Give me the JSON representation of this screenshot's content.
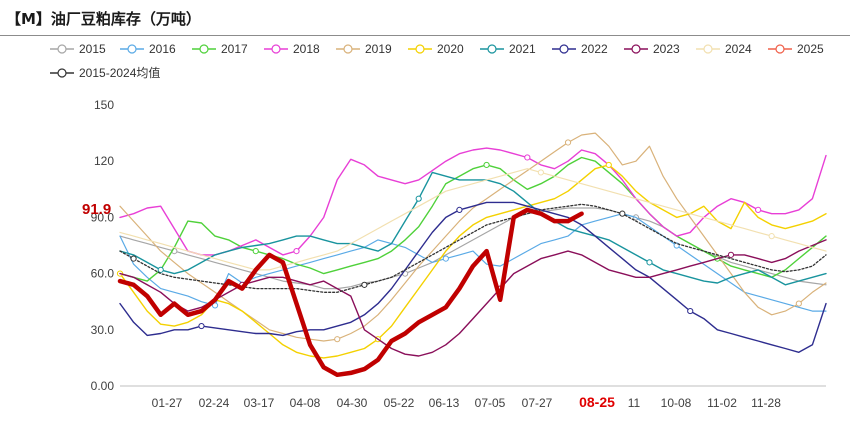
{
  "chart_data": {
    "type": "line",
    "title": "【M】油厂豆粕库存（万吨）",
    "xlabel": "",
    "ylabel": "",
    "ylim": [
      0,
      150
    ],
    "y_ticks": [
      "0.00",
      "30.0",
      "60.0",
      "90.0",
      "120",
      "150"
    ],
    "x_ticks": [
      "01-27",
      "02-24",
      "03-17",
      "04-08",
      "04-30",
      "05-22",
      "06-13",
      "07-05",
      "07-27",
      "08-25",
      "11",
      "10-08",
      "11-02",
      "11-28"
    ],
    "highlight_tick": "08-25",
    "current_value_label": "91.9",
    "grid": false,
    "legend_position": "top",
    "n_weeks": 53,
    "series": [
      {
        "name": "2015",
        "color": "#a6a6a6",
        "marker": "circle",
        "width": 1.2,
        "dash": "",
        "values": [
          80,
          78,
          76,
          74,
          72,
          70,
          68,
          66,
          64,
          62,
          60,
          58,
          56,
          55,
          54,
          52,
          52,
          53,
          55,
          56,
          58,
          60,
          63,
          66,
          70,
          74,
          78,
          82,
          86,
          90,
          92,
          93,
          94,
          95,
          95,
          95,
          94,
          92,
          90,
          88,
          85,
          80,
          76,
          72,
          69,
          66,
          64,
          62,
          60,
          58,
          56,
          55,
          54
        ]
      },
      {
        "name": "2016",
        "color": "#5aaae6",
        "marker": "circle",
        "width": 1.2,
        "dash": "",
        "values": [
          80,
          65,
          58,
          52,
          50,
          48,
          45,
          43,
          60,
          55,
          58,
          60,
          62,
          64,
          66,
          68,
          70,
          72,
          74,
          78,
          76,
          74,
          70,
          66,
          68,
          70,
          72,
          65,
          64,
          68,
          72,
          76,
          78,
          80,
          86,
          88,
          90,
          92,
          90,
          85,
          80,
          75,
          70,
          65,
          60,
          55,
          50,
          48,
          46,
          44,
          42,
          40,
          40
        ]
      },
      {
        "name": "2017",
        "color": "#4fd13a",
        "marker": "circle",
        "width": 1.4,
        "dash": "",
        "values": [
          60,
          58,
          56,
          62,
          74,
          88,
          87,
          80,
          78,
          74,
          72,
          70,
          68,
          65,
          63,
          60,
          62,
          64,
          66,
          68,
          72,
          78,
          85,
          96,
          108,
          112,
          116,
          118,
          116,
          110,
          105,
          108,
          112,
          118,
          122,
          120,
          114,
          108,
          100,
          92,
          85,
          80,
          76,
          72,
          68,
          64,
          62,
          60,
          58,
          62,
          68,
          74,
          80
        ]
      },
      {
        "name": "2018",
        "color": "#e83fd6",
        "marker": "circle",
        "width": 1.4,
        "dash": "",
        "values": [
          90,
          92,
          95,
          96,
          84,
          72,
          70,
          70,
          72,
          75,
          78,
          74,
          70,
          72,
          80,
          90,
          110,
          121,
          118,
          112,
          110,
          108,
          110,
          115,
          120,
          124,
          126,
          127,
          126,
          124,
          122,
          118,
          116,
          120,
          126,
          124,
          118,
          110,
          100,
          92,
          85,
          80,
          82,
          90,
          96,
          100,
          98,
          94,
          92,
          92,
          94,
          100,
          123
        ]
      },
      {
        "name": "2019",
        "color": "#d9b27a",
        "marker": "circle",
        "width": 1.2,
        "dash": "",
        "values": [
          96,
          88,
          80,
          72,
          66,
          60,
          55,
          50,
          45,
          40,
          35,
          30,
          28,
          26,
          25,
          24,
          25,
          28,
          32,
          38,
          46,
          55,
          64,
          72,
          80,
          88,
          95,
          100,
          105,
          110,
          115,
          120,
          125,
          130,
          134,
          135,
          128,
          118,
          120,
          128,
          112,
          100,
          90,
          80,
          70,
          60,
          50,
          42,
          38,
          40,
          44,
          50,
          55
        ]
      },
      {
        "name": "2020",
        "color": "#f4d100",
        "marker": "circle",
        "width": 1.4,
        "dash": "",
        "values": [
          60,
          50,
          40,
          33,
          32,
          34,
          38,
          46,
          44,
          40,
          34,
          28,
          22,
          18,
          16,
          15,
          16,
          18,
          20,
          25,
          32,
          42,
          52,
          62,
          72,
          80,
          86,
          90,
          92,
          94,
          96,
          98,
          100,
          104,
          110,
          116,
          118,
          112,
          104,
          98,
          94,
          90,
          92,
          96,
          88,
          84,
          98,
          90,
          86,
          84,
          86,
          88,
          92
        ]
      },
      {
        "name": "2021",
        "color": "#19949e",
        "marker": "circle",
        "width": 1.4,
        "dash": "",
        "values": [
          72,
          70,
          66,
          62,
          60,
          62,
          66,
          70,
          72,
          74,
          75,
          76,
          78,
          80,
          80,
          78,
          76,
          76,
          74,
          72,
          76,
          88,
          100,
          114,
          112,
          110,
          110,
          110,
          108,
          104,
          98,
          92,
          88,
          84,
          82,
          80,
          78,
          74,
          70,
          66,
          62,
          60,
          58,
          56,
          55,
          58,
          60,
          62,
          58,
          54,
          56,
          58,
          60
        ]
      },
      {
        "name": "2022",
        "color": "#2e2d8f",
        "marker": "circle",
        "width": 1.4,
        "dash": "",
        "values": [
          44,
          34,
          27,
          28,
          30,
          30,
          32,
          31,
          30,
          29,
          28,
          28,
          27,
          29,
          30,
          30,
          32,
          34,
          38,
          44,
          52,
          62,
          72,
          82,
          90,
          94,
          96,
          98,
          98,
          98,
          96,
          94,
          92,
          90,
          86,
          80,
          74,
          68,
          62,
          58,
          52,
          46,
          40,
          36,
          30,
          28,
          26,
          24,
          22,
          20,
          18,
          22,
          44
        ]
      },
      {
        "name": "2023",
        "color": "#8a0f5a",
        "marker": "circle",
        "width": 1.4,
        "dash": "",
        "values": [
          60,
          58,
          54,
          50,
          44,
          40,
          42,
          46,
          50,
          54,
          56,
          58,
          58,
          56,
          54,
          56,
          52,
          48,
          30,
          25,
          20,
          17,
          16,
          18,
          22,
          28,
          36,
          44,
          52,
          60,
          64,
          68,
          70,
          72,
          70,
          66,
          62,
          60,
          58,
          58,
          60,
          62,
          64,
          66,
          68,
          70,
          70,
          68,
          66,
          68,
          72,
          75,
          78
        ]
      },
      {
        "name": "2024",
        "color": "#f2e0b0",
        "marker": "circle",
        "width": 1.2,
        "dash": "",
        "values": [
          82,
          80,
          78,
          76,
          74,
          72,
          70,
          68,
          66,
          64,
          62,
          62,
          64,
          66,
          68,
          70,
          72,
          76,
          80,
          84,
          88,
          92,
          96,
          100,
          104,
          106,
          108,
          110,
          112,
          114,
          116,
          114,
          112,
          110,
          108,
          106,
          104,
          102,
          100,
          98,
          96,
          94,
          92,
          90,
          88,
          86,
          84,
          82,
          80,
          78,
          76,
          74,
          72
        ]
      },
      {
        "name": "2025",
        "color": "#f0604a",
        "marker": "circle",
        "width": 1.2,
        "dash": "",
        "values": [
          null,
          null,
          null,
          null,
          null,
          null,
          null,
          null,
          null,
          null,
          null,
          null,
          null,
          null,
          null,
          null,
          null,
          null,
          null,
          null,
          null,
          null,
          null,
          null,
          null,
          null,
          null,
          null,
          null,
          null,
          null,
          null,
          null,
          null,
          null,
          null,
          null,
          null,
          null,
          null,
          null,
          null,
          null,
          null,
          null,
          null,
          null,
          null,
          null,
          null,
          null,
          null,
          null
        ]
      },
      {
        "name": "2015-2024均值",
        "color": "#333333",
        "marker": "circle",
        "width": 1.3,
        "dash": "2,2",
        "values": [
          72,
          68,
          64,
          60,
          58,
          57,
          56,
          55,
          54,
          53,
          52,
          52,
          52,
          52,
          51,
          50,
          50,
          52,
          54,
          56,
          58,
          62,
          66,
          70,
          74,
          78,
          82,
          86,
          88,
          90,
          92,
          94,
          95,
          96,
          97,
          96,
          94,
          92,
          88,
          84,
          80,
          76,
          74,
          72,
          70,
          68,
          66,
          64,
          62,
          61,
          62,
          64,
          70
        ]
      },
      {
        "name": "",
        "legend": false,
        "color": "#c00000",
        "marker": "none",
        "width": 4.5,
        "dash": "",
        "values": [
          56,
          54,
          48,
          38,
          44,
          38,
          40,
          46,
          56,
          52,
          62,
          70,
          66,
          44,
          22,
          10,
          6,
          7,
          9,
          14,
          24,
          28,
          34,
          38,
          42,
          52,
          64,
          72,
          46,
          90,
          94,
          92,
          88,
          88,
          92
        ]
      }
    ]
  }
}
